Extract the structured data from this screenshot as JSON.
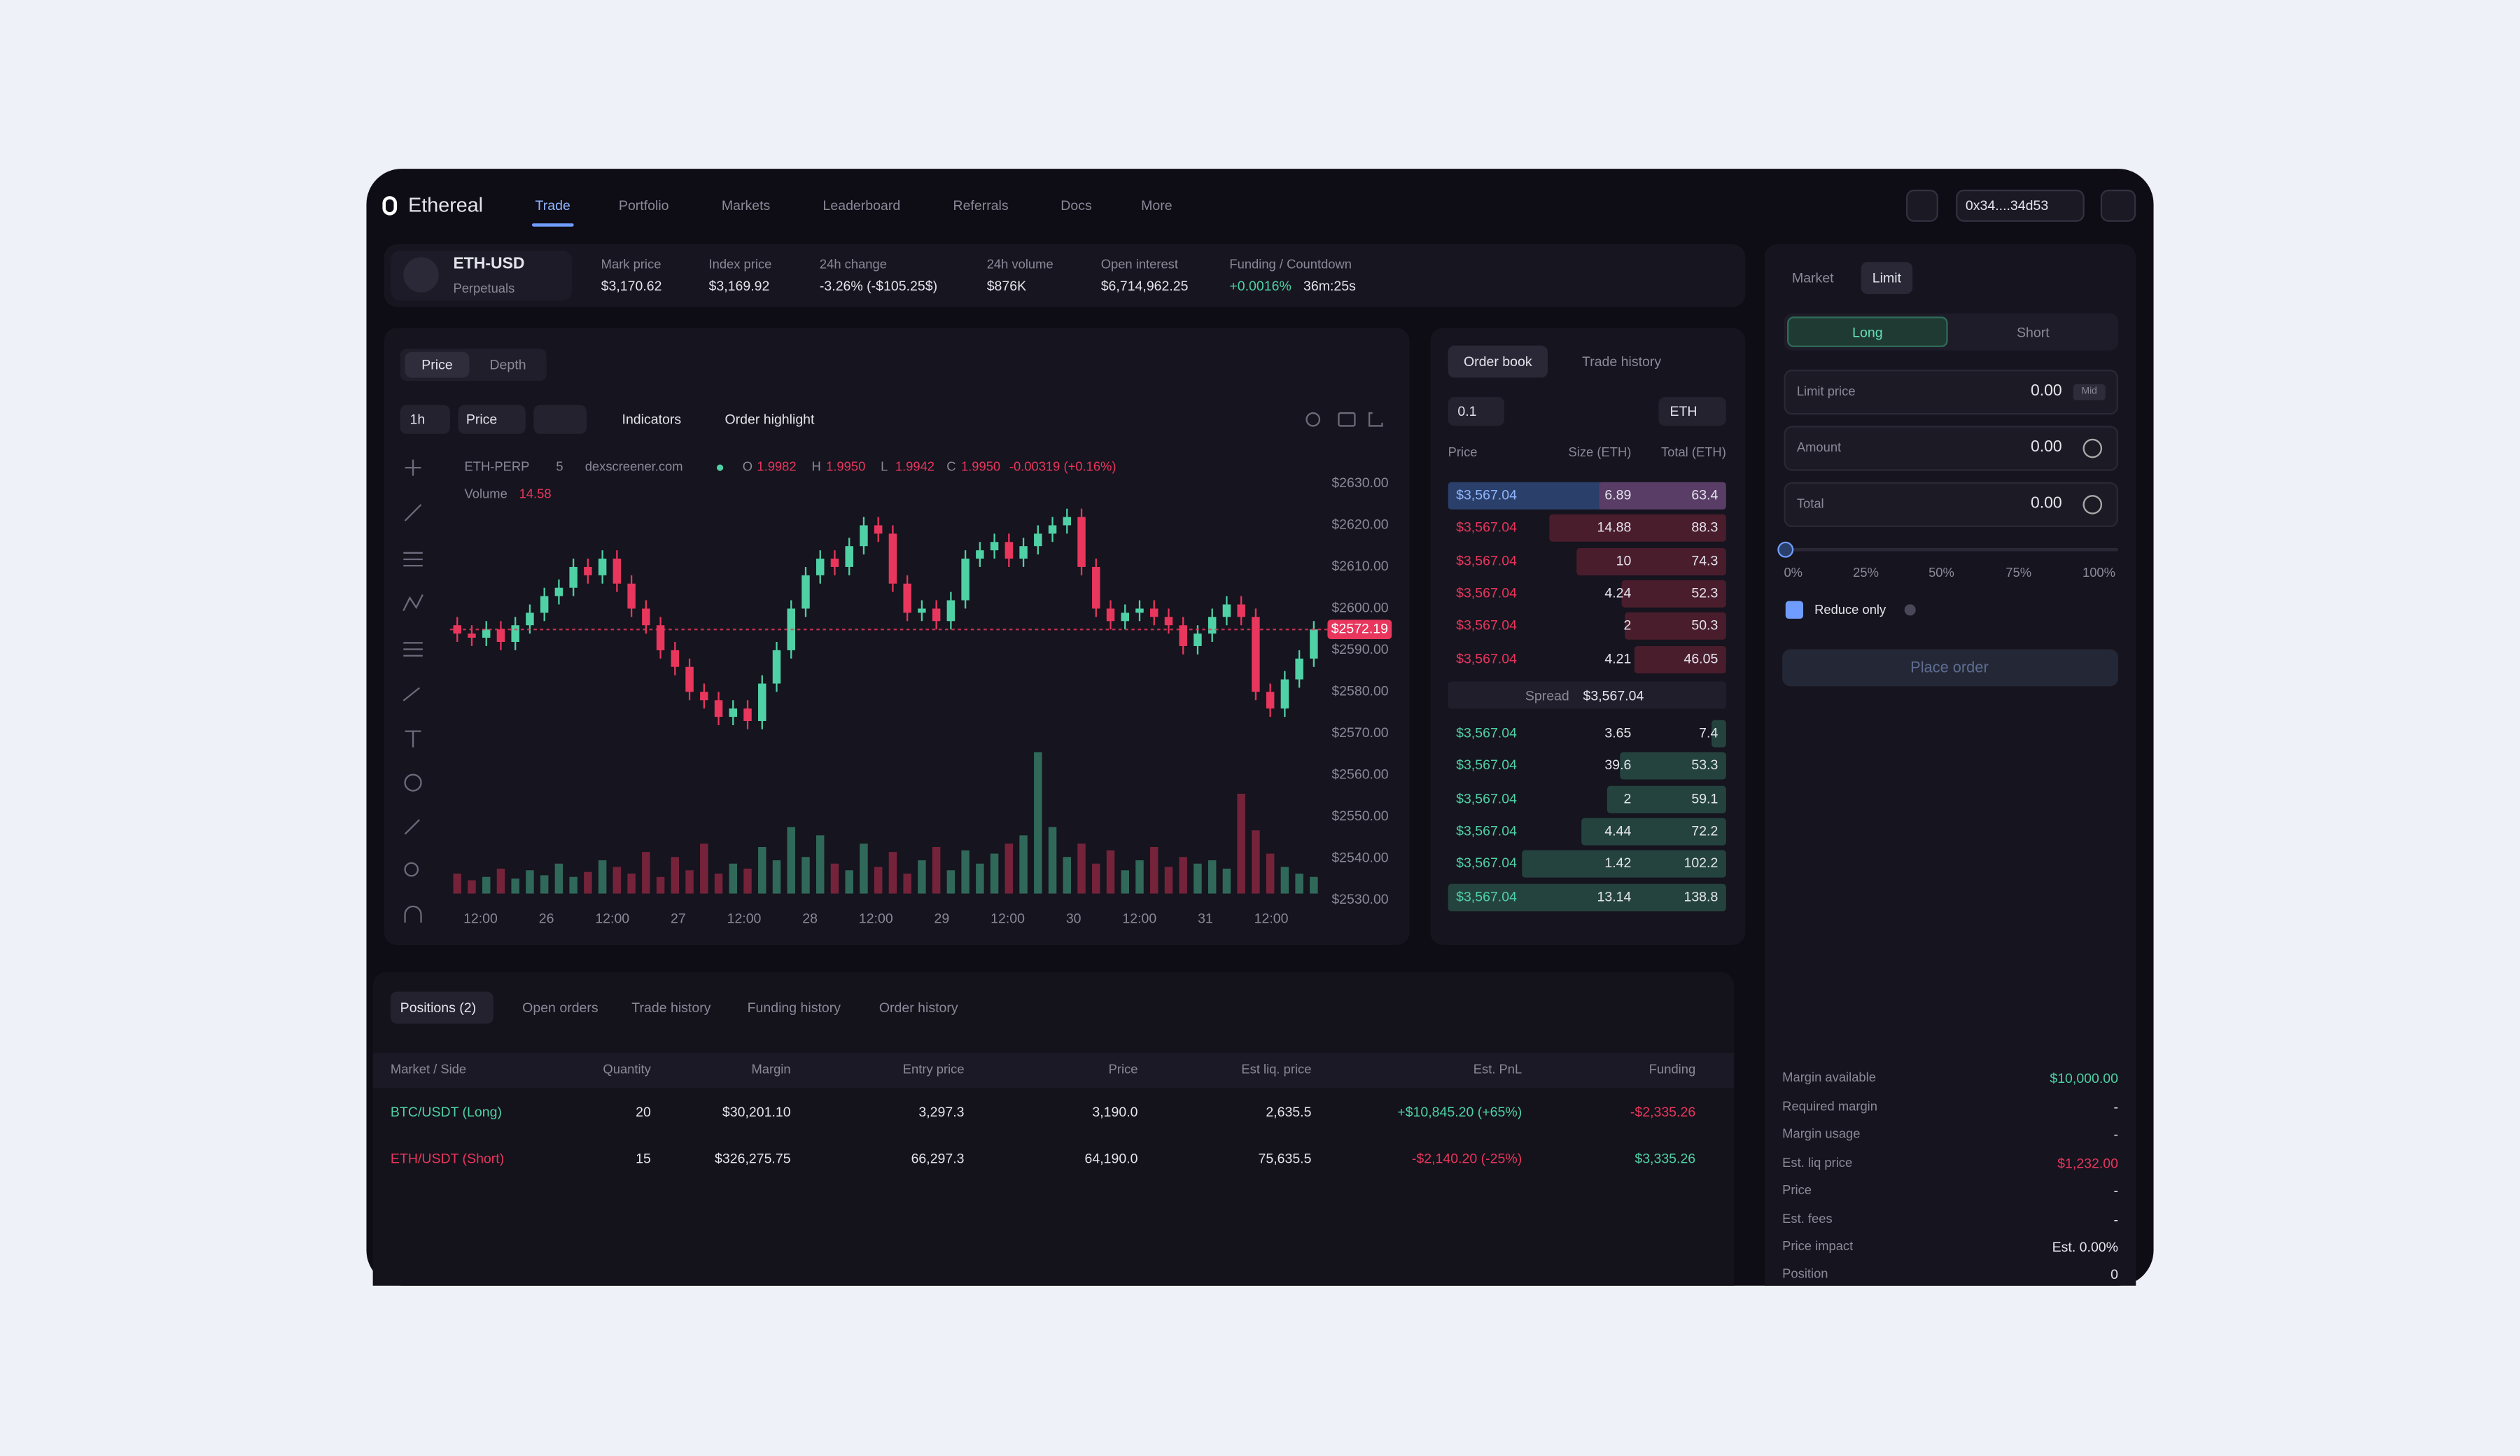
{
  "nav": {
    "logo": "Ethereal",
    "items": [
      "Trade",
      "Portfolio",
      "Markets",
      "Leaderboard",
      "Referrals",
      "Docs",
      "More"
    ],
    "wallet": "0x34....34d53"
  },
  "market": {
    "symbol": "ETH-USD",
    "kind": "Perpetuals",
    "stats": [
      {
        "label": "Mark price",
        "value": "$3,170.62"
      },
      {
        "label": "Index price",
        "value": "$3,169.92"
      },
      {
        "label": "24h change",
        "value": "-3.26% (-$105.25$)"
      },
      {
        "label": "24h volume",
        "value": "$876K"
      },
      {
        "label": "Open interest",
        "value": "$6,714,962.25"
      },
      {
        "label": "Funding / Countdown",
        "value": "+0.0016%",
        "extra": "36m:25s",
        "color": "#4fd1a5"
      }
    ]
  },
  "chart_data": {
    "type": "candlestick",
    "tabs": [
      "Price",
      "Depth"
    ],
    "toolbar": {
      "interval": "1h",
      "mode": "Price",
      "indicators": "Indicators",
      "highlight": "Order highlight"
    },
    "legend": {
      "pair": "ETH-PERP",
      "interval": "5",
      "source": "dexscreener.com",
      "ohlc": [
        {
          "key": "O",
          "value": "1.9982"
        },
        {
          "key": "H",
          "value": "1.9950"
        },
        {
          "key": "L",
          "value": "1.9942"
        },
        {
          "key": "C",
          "value": "1.9950"
        }
      ],
      "change": "-0.00319 (+0.16%)",
      "volume_label": "Volume",
      "volume_value": "14.58"
    },
    "up_color": "#4fd1a5",
    "down_color": "#e8365d",
    "open": [
      2596,
      2594,
      2593,
      2595,
      2592,
      2596,
      2599,
      2603,
      2605,
      2610,
      2608,
      2612,
      2606,
      2600,
      2596,
      2590,
      2586,
      2580,
      2578,
      2574,
      2576,
      2573,
      2582,
      2590,
      2600,
      2608,
      2612,
      2610,
      2615,
      2620,
      2618,
      2606,
      2599,
      2600,
      2597,
      2602,
      2612,
      2614,
      2616,
      2612,
      2615,
      2618,
      2620,
      2622,
      2610,
      2600,
      2597,
      2599,
      2600,
      2598,
      2596,
      2591,
      2594,
      2598,
      2601,
      2598,
      2580,
      2576,
      2583,
      2588
    ],
    "high": [
      2598,
      2596,
      2597,
      2597,
      2598,
      2601,
      2605,
      2607,
      2612,
      2612,
      2614,
      2614,
      2608,
      2602,
      2598,
      2592,
      2588,
      2582,
      2580,
      2578,
      2578,
      2584,
      2592,
      2602,
      2610,
      2614,
      2614,
      2617,
      2622,
      2622,
      2620,
      2608,
      2602,
      2602,
      2604,
      2614,
      2616,
      2618,
      2618,
      2617,
      2620,
      2622,
      2624,
      2624,
      2612,
      2602,
      2601,
      2602,
      2602,
      2600,
      2598,
      2596,
      2600,
      2603,
      2603,
      2600,
      2582,
      2585,
      2590,
      2597
    ],
    "low": [
      2592,
      2591,
      2591,
      2590,
      2590,
      2594,
      2597,
      2601,
      2603,
      2606,
      2606,
      2604,
      2598,
      2594,
      2588,
      2584,
      2578,
      2576,
      2572,
      2572,
      2571,
      2571,
      2580,
      2588,
      2598,
      2606,
      2608,
      2608,
      2613,
      2616,
      2604,
      2597,
      2597,
      2595,
      2595,
      2600,
      2610,
      2612,
      2610,
      2610,
      2613,
      2616,
      2618,
      2608,
      2598,
      2595,
      2595,
      2597,
      2596,
      2594,
      2589,
      2589,
      2592,
      2596,
      2596,
      2578,
      2574,
      2574,
      2581,
      2586
    ],
    "close": [
      2594,
      2593,
      2595,
      2592,
      2596,
      2599,
      2603,
      2605,
      2610,
      2608,
      2612,
      2606,
      2600,
      2596,
      2590,
      2586,
      2580,
      2578,
      2574,
      2576,
      2573,
      2582,
      2590,
      2600,
      2608,
      2612,
      2610,
      2615,
      2620,
      2618,
      2606,
      2599,
      2600,
      2597,
      2602,
      2612,
      2614,
      2616,
      2612,
      2615,
      2618,
      2620,
      2622,
      2610,
      2600,
      2597,
      2599,
      2600,
      2598,
      2596,
      2591,
      2594,
      2598,
      2601,
      2598,
      2580,
      2576,
      2583,
      2588,
      2595
    ],
    "volume": [
      12,
      8,
      10,
      15,
      9,
      14,
      11,
      18,
      10,
      13,
      20,
      16,
      12,
      25,
      10,
      22,
      14,
      30,
      12,
      18,
      15,
      28,
      20,
      40,
      22,
      35,
      18,
      14,
      30,
      16,
      25,
      12,
      20,
      28,
      14,
      26,
      18,
      24,
      30,
      35,
      85,
      40,
      22,
      30,
      18,
      26,
      14,
      20,
      28,
      16,
      22,
      18,
      20,
      15,
      60,
      38,
      24,
      16,
      12,
      10
    ],
    "ylim": [
      2525,
      2635
    ],
    "yticks": [
      {
        "value": 2630,
        "label": "$2630.00"
      },
      {
        "value": 2620,
        "label": "$2620.00"
      },
      {
        "value": 2610,
        "label": "$2610.00"
      },
      {
        "value": 2600,
        "label": "$2600.00"
      },
      {
        "value": 2590,
        "label": "$2590.00"
      },
      {
        "value": 2580,
        "label": "$2580.00"
      },
      {
        "value": 2570,
        "label": "$2570.00"
      },
      {
        "value": 2560,
        "label": "$2560.00"
      },
      {
        "value": 2550,
        "label": "$2550.00"
      },
      {
        "value": 2540,
        "label": "$2540.00"
      },
      {
        "value": 2530,
        "label": "$2530.00"
      }
    ],
    "x_labels": [
      "12:00",
      "26",
      "12:00",
      "27",
      "12:00",
      "28",
      "12:00",
      "29",
      "12:00",
      "30",
      "12:00",
      "31",
      "12:00"
    ],
    "last_price_label": "$2572.19"
  },
  "orderbook": {
    "tabs": [
      "Order book",
      "Trade history"
    ],
    "step": "0.1",
    "unit": "ETH",
    "headers": [
      "Price",
      "Size (ETH)",
      "Total (ETH)"
    ],
    "ask_color": "#e8365d",
    "bid_color": "#4fd1a5",
    "asks": [
      {
        "price": "$3,567.04",
        "size": 6.89,
        "total": 63.4
      },
      {
        "price": "$3,567.04",
        "size": 14.88,
        "total": 88.3
      },
      {
        "price": "$3,567.04",
        "size": 10,
        "total": 74.3
      },
      {
        "price": "$3,567.04",
        "size": 4.24,
        "total": 52.3
      },
      {
        "price": "$3,567.04",
        "size": 2,
        "total": 50.3
      },
      {
        "price": "$3,567.04",
        "size": 4.21,
        "total": 46.05
      }
    ],
    "spread_label": "Spread",
    "spread": "$3,567.04",
    "bids": [
      {
        "price": "$3,567.04",
        "size": 3.65,
        "total": 7.4
      },
      {
        "price": "$3,567.04",
        "size": 39.6,
        "total": 53.3
      },
      {
        "price": "$3,567.04",
        "size": 2,
        "total": 59.1
      },
      {
        "price": "$3,567.04",
        "size": 4.44,
        "total": 72.2
      },
      {
        "price": "$3,567.04",
        "size": 1.42,
        "total": 102.2
      },
      {
        "price": "$3,567.04",
        "size": 13.14,
        "total": 138.8
      }
    ]
  },
  "order_form": {
    "types": [
      "Market",
      "Limit"
    ],
    "sides": [
      "Long",
      "Short"
    ],
    "fields": [
      {
        "label": "Limit price",
        "value": "0.00",
        "tag": "Mid"
      },
      {
        "label": "Amount",
        "value": "0.00"
      },
      {
        "label": "Total",
        "value": "0.00"
      }
    ],
    "slider": [
      "0%",
      "25%",
      "50%",
      "75%",
      "100%"
    ],
    "reduce_only": "Reduce only",
    "submit": "Place order",
    "summary": [
      {
        "label": "Margin available",
        "value": "$10,000.00",
        "color": "#4fd1a5"
      },
      {
        "label": "Required margin",
        "value": "-"
      },
      {
        "label": "Margin usage",
        "value": "-"
      },
      {
        "label": "Est. liq price",
        "value": "$1,232.00",
        "color": "#e8365d"
      },
      {
        "label": "Price",
        "value": "-"
      },
      {
        "label": "Est. fees",
        "value": "-"
      },
      {
        "label": "Price impact",
        "value": "Est. 0.00%"
      },
      {
        "label": "Position",
        "value": "0"
      }
    ]
  },
  "positions": {
    "tabs": [
      "Positions (2)",
      "Open orders",
      "Trade history",
      "Funding history",
      "Order history"
    ],
    "headers": [
      "Market / Side",
      "Quantity",
      "Margin",
      "Entry price",
      "Price",
      "Est liq. price",
      "Est. PnL",
      "Funding"
    ],
    "rows": [
      {
        "cells": [
          "BTC/USDT (Long)",
          "20",
          "$30,201.10",
          "3,297.3",
          "3,190.0",
          "2,635.5",
          "+$10,845.20 (+65%)",
          "-$2,335.26"
        ],
        "side_color": "#4fd1a5",
        "pnl_color": "#4fd1a5",
        "funding_color": "#e8365d"
      },
      {
        "cells": [
          "ETH/USDT (Short)",
          "15",
          "$326,275.75",
          "66,297.3",
          "64,190.0",
          "75,635.5",
          "-$2,140.20 (-25%)",
          "$3,335.26"
        ],
        "side_color": "#e8365d",
        "pnl_color": "#e8365d",
        "funding_color": "#4fd1a5"
      }
    ]
  }
}
